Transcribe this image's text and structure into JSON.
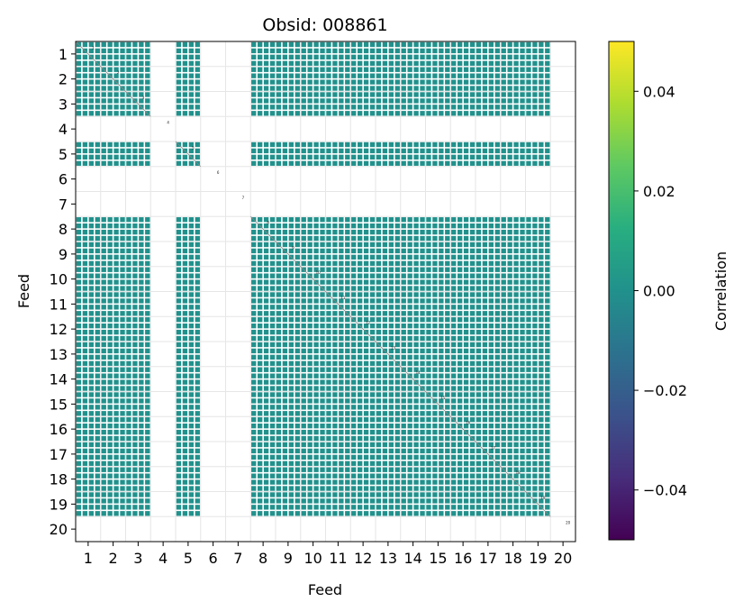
{
  "chart_data": {
    "type": "heatmap",
    "title": "Obsid: 008861",
    "xlabel": "Feed",
    "ylabel": "Feed",
    "feeds": [
      1,
      2,
      3,
      4,
      5,
      6,
      7,
      8,
      9,
      10,
      11,
      12,
      13,
      14,
      15,
      16,
      17,
      18,
      19,
      20
    ],
    "x_tick_labels": [
      "1",
      "2",
      "3",
      "4",
      "5",
      "6",
      "7",
      "8",
      "9",
      "10",
      "11",
      "12",
      "13",
      "14",
      "15",
      "16",
      "17",
      "18",
      "19",
      "20"
    ],
    "y_tick_labels": [
      "1",
      "2",
      "3",
      "4",
      "5",
      "6",
      "7",
      "8",
      "9",
      "10",
      "11",
      "12",
      "13",
      "14",
      "15",
      "16",
      "17",
      "18",
      "19",
      "20"
    ],
    "diagonal_labels": [
      "1",
      "2",
      "3",
      "4",
      "5",
      "6",
      "7",
      "8",
      "9",
      "10",
      "11",
      "12",
      "13",
      "14",
      "15",
      "16",
      "17",
      "18",
      "19",
      "20"
    ],
    "active_feeds": [
      1,
      2,
      3,
      5,
      8,
      9,
      10,
      11,
      12,
      13,
      14,
      15,
      16,
      17,
      18,
      19
    ],
    "inactive_feeds": [
      4,
      6,
      7,
      20
    ],
    "cell_value": 0.0,
    "colorbar": {
      "label": "Correlation",
      "colormap": "viridis",
      "vmin": -0.05,
      "vmax": 0.05,
      "ticks": [
        -0.04,
        -0.02,
        0.0,
        0.02,
        0.04
      ],
      "tick_labels": [
        "−0.04",
        "−0.02",
        "0.00",
        "0.02",
        "0.04"
      ]
    },
    "colors": {
      "cell": "#21918c",
      "grid": "#e6e6e6",
      "diagonal": "#888888"
    }
  }
}
